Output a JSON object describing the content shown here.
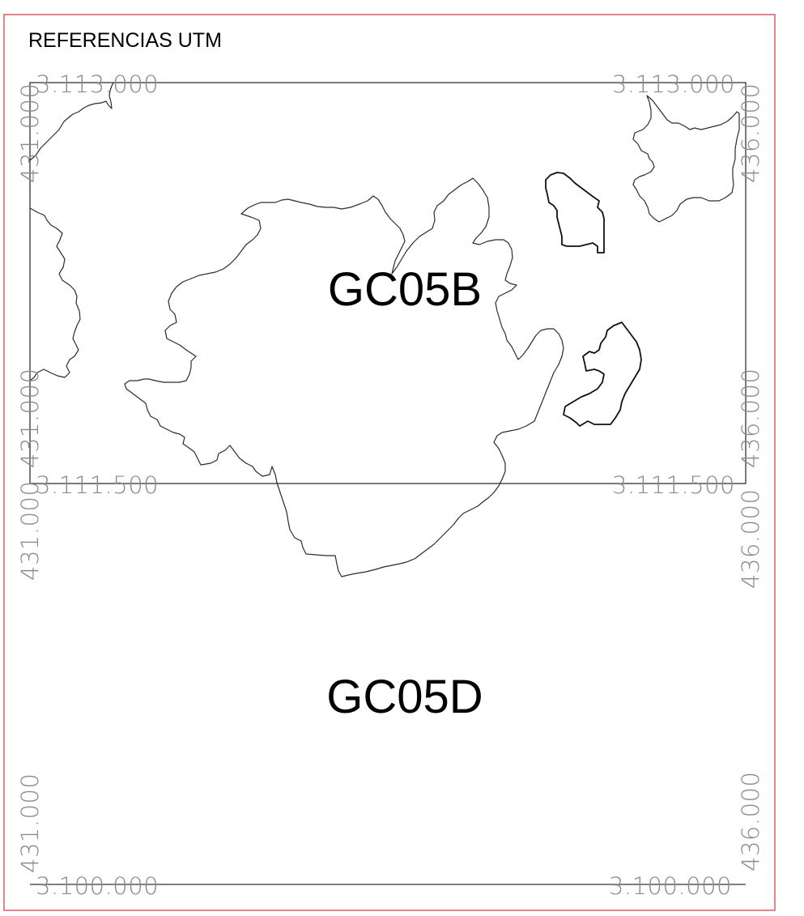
{
  "title": "REFERENCIAS UTM",
  "sheets": {
    "upper": "GC05B",
    "lower": "GC05D"
  },
  "coordinates": {
    "northing_top_left": "3.113.000",
    "northing_top_right": "3.113.000",
    "northing_mid_left": "3.111.500",
    "northing_mid_right": "3.111.500",
    "northing_bottom_left": "3.100.000",
    "northing_bottom_right": "3.100.000",
    "easting_left_1": "431.000",
    "easting_left_2": "431.000",
    "easting_left_3": "431.000",
    "easting_left_4": "431.000",
    "easting_right_1": "436.000",
    "easting_right_2": "436.000",
    "easting_right_3": "436.000",
    "easting_right_4": "436.000"
  },
  "colors": {
    "frame": "#e05a66",
    "grid": "#333333",
    "coord_text": "#8a8a8a"
  }
}
